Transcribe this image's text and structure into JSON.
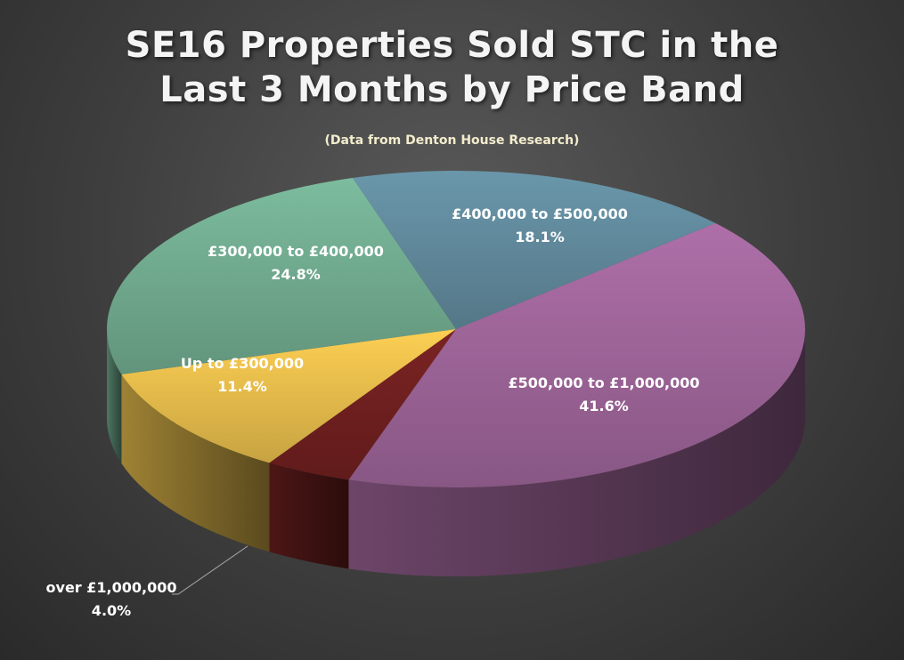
{
  "chart_data": {
    "type": "pie",
    "title": "SE16 Properties Sold STC in the Last 3 Months by Price Band",
    "title_lines": [
      "SE16 Properties Sold STC in the",
      "Last 3 Months by Price Band"
    ],
    "subtitle": "(Data from Denton House Research)",
    "categories": [
      "£500,000 to £1,000,000",
      "over £1,000,000",
      "Up to £300,000",
      "£300,000 to £400,000",
      "£400,000 to £500,000"
    ],
    "values": [
      41.6,
      4.0,
      11.4,
      24.8,
      18.1
    ],
    "value_labels": [
      "41.6%",
      "4.0%",
      "11.4%",
      "24.8%",
      "18.1%"
    ],
    "colors": [
      "#9b6396",
      "#6e1f1f",
      "#e2b94a",
      "#6fa88d",
      "#5f8799"
    ],
    "style": "3d"
  }
}
